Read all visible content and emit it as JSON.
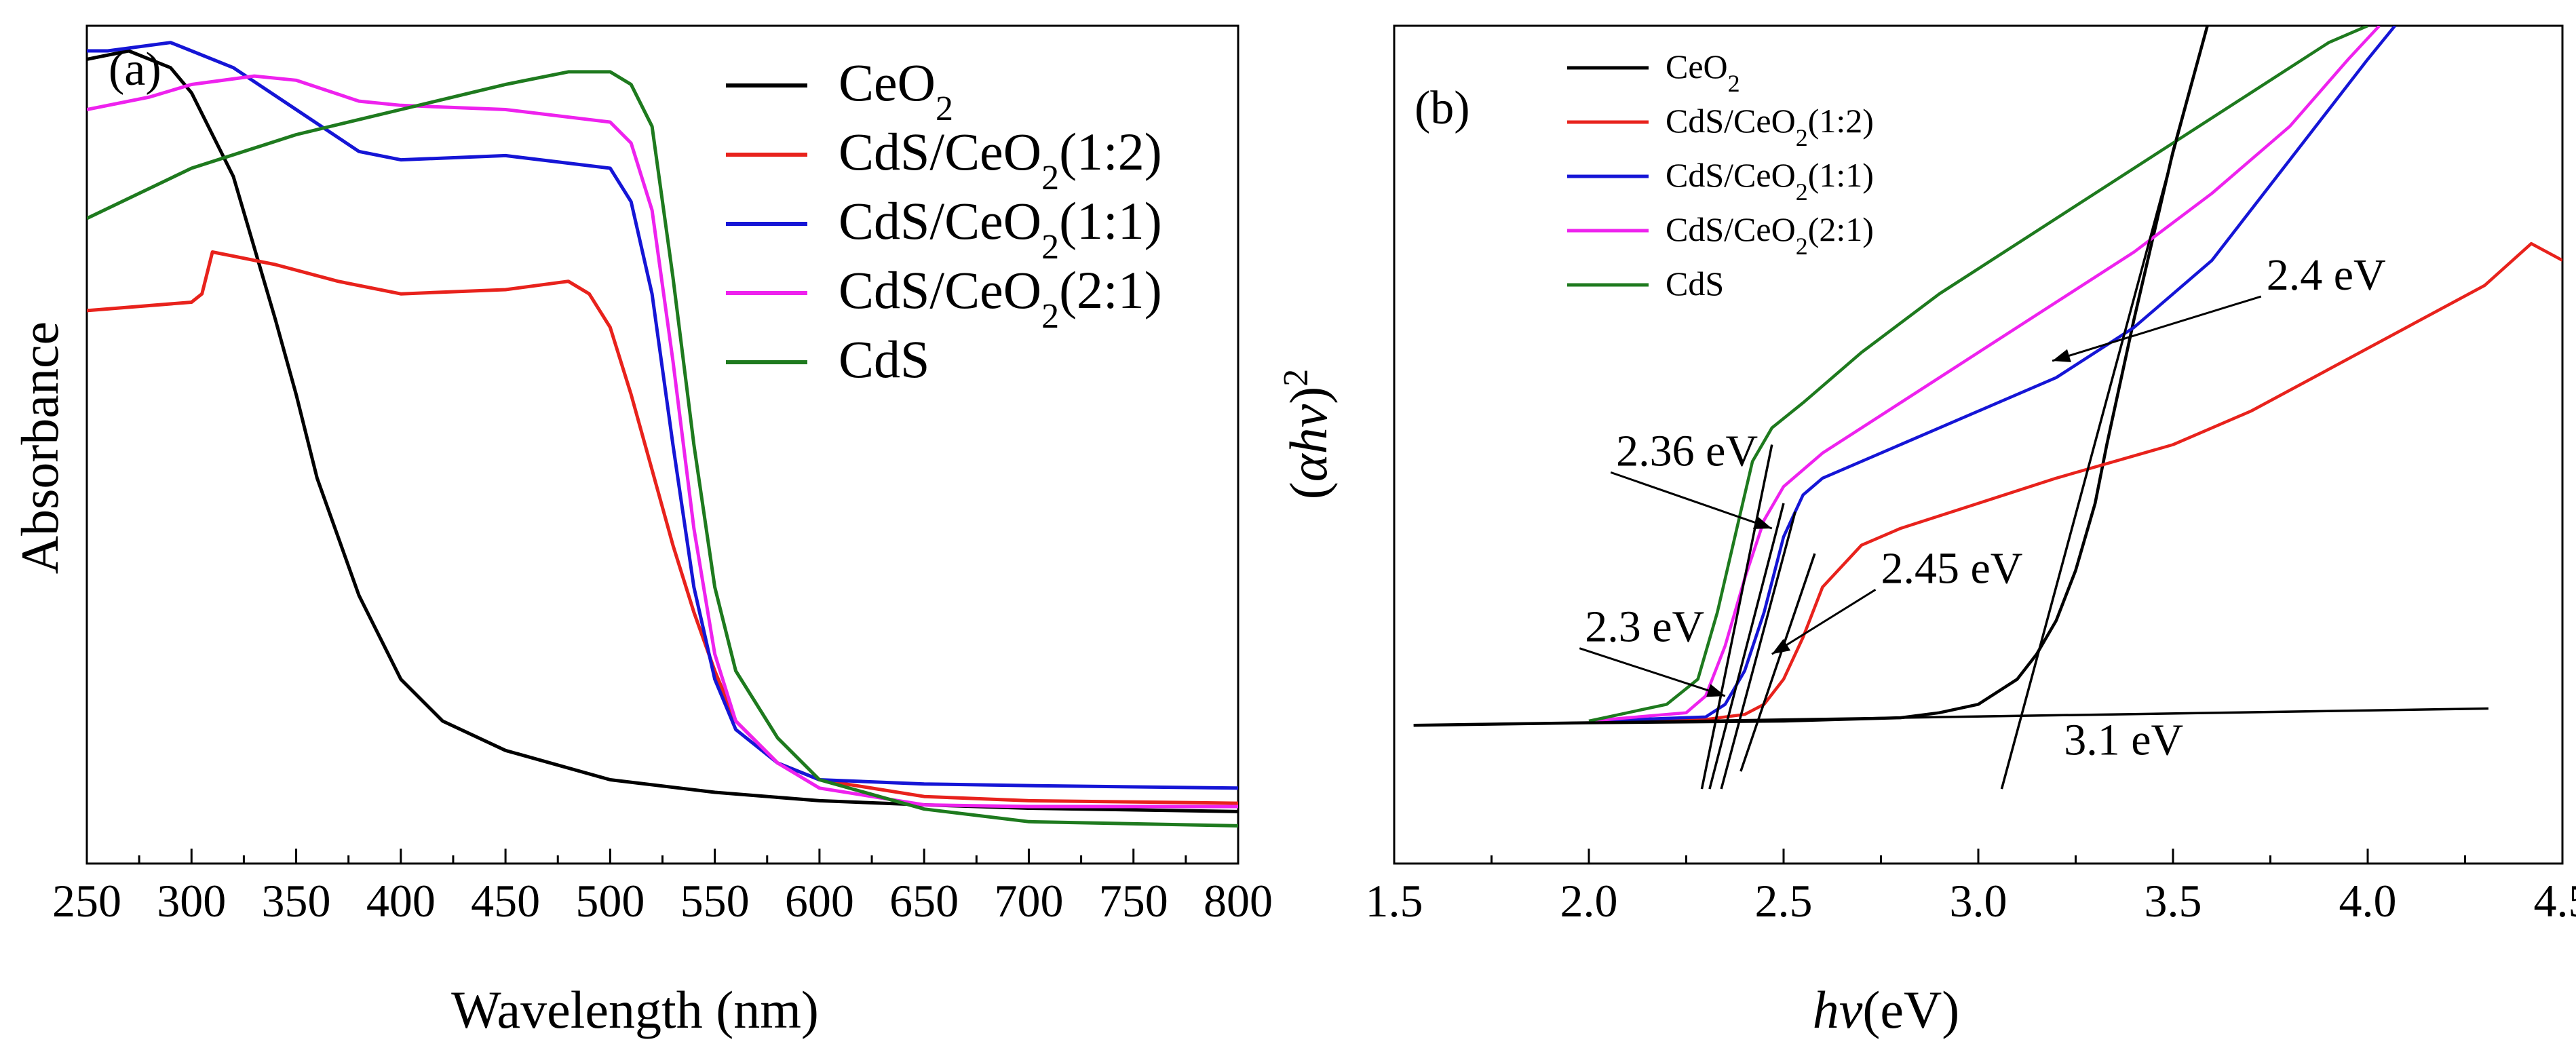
{
  "chart_data": [
    {
      "id": "a",
      "type": "line",
      "panel_label": "(a)",
      "xlabel": "Wavelength (nm)",
      "ylabel": "Absorbance",
      "xlim": [
        250,
        800
      ],
      "ylim": [
        0,
        1
      ],
      "x_ticks": [
        "250",
        "300",
        "350",
        "400",
        "450",
        "500",
        "550",
        "600",
        "650",
        "700",
        "750",
        "800"
      ],
      "y_ticks_shown": false,
      "legend": {
        "position": "top-right",
        "entries": [
          {
            "label": "CeO",
            "sub": "2",
            "tail": ""
          },
          {
            "label": "CdS/CeO",
            "sub": "2",
            "tail": "(1:2)"
          },
          {
            "label": "CdS/CeO",
            "sub": "2",
            "tail": "(1:1)"
          },
          {
            "label": "CdS/CeO",
            "sub": "2",
            "tail": "(2:1)"
          },
          {
            "label": "CdS",
            "sub": "",
            "tail": ""
          }
        ]
      },
      "series": [
        {
          "name": "CeO2",
          "color": "#000000",
          "x": [
            250,
            270,
            290,
            300,
            320,
            340,
            350,
            360,
            380,
            400,
            420,
            450,
            500,
            550,
            600,
            650,
            700,
            800
          ],
          "y": [
            0.96,
            0.97,
            0.95,
            0.92,
            0.82,
            0.65,
            0.56,
            0.46,
            0.32,
            0.22,
            0.17,
            0.135,
            0.1,
            0.085,
            0.075,
            0.07,
            0.066,
            0.062
          ]
        },
        {
          "name": "CdS/CeO2(1:2)",
          "color": "#e8221c",
          "x": [
            250,
            300,
            305,
            310,
            320,
            340,
            370,
            400,
            450,
            480,
            490,
            500,
            510,
            520,
            530,
            540,
            550,
            560,
            580,
            600,
            650,
            700,
            800
          ],
          "y": [
            0.66,
            0.67,
            0.68,
            0.73,
            0.725,
            0.715,
            0.695,
            0.68,
            0.685,
            0.695,
            0.68,
            0.64,
            0.56,
            0.47,
            0.38,
            0.3,
            0.23,
            0.17,
            0.12,
            0.1,
            0.08,
            0.075,
            0.072
          ]
        },
        {
          "name": "CdS/CeO2(1:1)",
          "color": "#1515d6",
          "x": [
            250,
            260,
            290,
            300,
            320,
            350,
            380,
            400,
            450,
            500,
            510,
            520,
            530,
            540,
            550,
            560,
            580,
            600,
            650,
            700,
            800
          ],
          "y": [
            0.97,
            0.97,
            0.98,
            0.97,
            0.95,
            0.9,
            0.85,
            0.84,
            0.845,
            0.83,
            0.79,
            0.68,
            0.5,
            0.33,
            0.22,
            0.16,
            0.12,
            0.1,
            0.095,
            0.093,
            0.09
          ]
        },
        {
          "name": "CdS/CeO2(2:1)",
          "color": "#ee22ee",
          "x": [
            250,
            280,
            300,
            330,
            350,
            380,
            400,
            450,
            500,
            510,
            520,
            530,
            540,
            550,
            560,
            580,
            600,
            650,
            700,
            800
          ],
          "y": [
            0.9,
            0.915,
            0.93,
            0.94,
            0.935,
            0.91,
            0.905,
            0.9,
            0.885,
            0.86,
            0.78,
            0.6,
            0.4,
            0.25,
            0.17,
            0.12,
            0.09,
            0.07,
            0.068,
            0.068
          ]
        },
        {
          "name": "CdS",
          "color": "#1e7a1e",
          "x": [
            250,
            300,
            350,
            400,
            450,
            480,
            500,
            510,
            520,
            530,
            540,
            550,
            560,
            580,
            600,
            650,
            700,
            800
          ],
          "y": [
            0.77,
            0.83,
            0.87,
            0.9,
            0.93,
            0.945,
            0.945,
            0.93,
            0.88,
            0.7,
            0.5,
            0.33,
            0.23,
            0.15,
            0.1,
            0.065,
            0.05,
            0.045
          ]
        }
      ]
    },
    {
      "id": "b",
      "type": "line",
      "panel_label": "(b)",
      "xlabel": "hν(eV)",
      "ylabel": "(αhν)²",
      "xlim": [
        1.5,
        4.5
      ],
      "ylim": [
        0,
        1
      ],
      "x_ticks": [
        "1.5",
        "2.0",
        "2.5",
        "3.0",
        "3.5",
        "4.0",
        "4.5"
      ],
      "y_ticks_shown": false,
      "legend": {
        "position": "top-left",
        "entries": [
          {
            "label": "CeO",
            "sub": "2",
            "tail": ""
          },
          {
            "label": "CdS/CeO",
            "sub": "2",
            "tail": "(1:2)"
          },
          {
            "label": "CdS/CeO",
            "sub": "2",
            "tail": "(1:1)"
          },
          {
            "label": "CdS/CeO",
            "sub": "2",
            "tail": "(2:1)"
          },
          {
            "label": "CdS",
            "sub": "",
            "tail": ""
          }
        ]
      },
      "series": [
        {
          "name": "CeO2",
          "color": "#000000",
          "x": [
            1.55,
            2.0,
            2.5,
            2.8,
            2.9,
            3.0,
            3.1,
            3.15,
            3.2,
            3.25,
            3.3,
            3.33,
            3.4,
            3.5,
            3.6
          ],
          "y": [
            0.165,
            0.168,
            0.17,
            0.174,
            0.18,
            0.19,
            0.22,
            0.25,
            0.29,
            0.35,
            0.43,
            0.5,
            0.65,
            0.85,
            1.02
          ]
        },
        {
          "name": "CdS/CeO2(1:2)",
          "color": "#e8221c",
          "x": [
            2.0,
            2.3,
            2.4,
            2.45,
            2.5,
            2.55,
            2.6,
            2.7,
            2.8,
            3.0,
            3.2,
            3.5,
            3.7,
            3.9,
            4.1,
            4.3,
            4.42,
            4.5
          ],
          "y": [
            0.17,
            0.172,
            0.178,
            0.19,
            0.22,
            0.27,
            0.33,
            0.38,
            0.4,
            0.43,
            0.46,
            0.5,
            0.54,
            0.59,
            0.64,
            0.69,
            0.74,
            0.72
          ]
        },
        {
          "name": "CdS/CeO2(1:1)",
          "color": "#1515d6",
          "x": [
            2.0,
            2.3,
            2.35,
            2.4,
            2.45,
            2.5,
            2.55,
            2.6,
            2.8,
            3.0,
            3.2,
            3.4,
            3.6,
            3.8,
            4.0,
            4.07
          ],
          "y": [
            0.17,
            0.175,
            0.19,
            0.23,
            0.3,
            0.39,
            0.44,
            0.46,
            0.5,
            0.54,
            0.58,
            0.64,
            0.72,
            0.84,
            0.96,
            1.0
          ]
        },
        {
          "name": "CdS/CeO2(2:1)",
          "color": "#ee22ee",
          "x": [
            2.0,
            2.25,
            2.3,
            2.35,
            2.4,
            2.45,
            2.5,
            2.6,
            2.8,
            3.0,
            3.2,
            3.4,
            3.6,
            3.8,
            3.95,
            4.03
          ],
          "y": [
            0.17,
            0.18,
            0.2,
            0.26,
            0.34,
            0.41,
            0.45,
            0.49,
            0.55,
            0.61,
            0.67,
            0.73,
            0.8,
            0.88,
            0.96,
            1.0
          ]
        },
        {
          "name": "CdS",
          "color": "#1e7a1e",
          "x": [
            2.0,
            2.2,
            2.28,
            2.33,
            2.38,
            2.42,
            2.47,
            2.55,
            2.7,
            2.9,
            3.1,
            3.3,
            3.5,
            3.7,
            3.9,
            4.0
          ],
          "y": [
            0.17,
            0.19,
            0.22,
            0.3,
            0.4,
            0.48,
            0.52,
            0.55,
            0.61,
            0.68,
            0.74,
            0.8,
            0.86,
            0.92,
            0.98,
            1.0
          ]
        }
      ],
      "fit_lines": [
        {
          "x1": 1.55,
          "y1": 0.165,
          "x2": 4.31,
          "y2": 0.185
        },
        {
          "x1": 3.06,
          "y1": 0.089,
          "x2": 3.6,
          "y2": 1.02
        },
        {
          "x1": 2.29,
          "y1": 0.089,
          "x2": 2.47,
          "y2": 0.5
        },
        {
          "x1": 2.31,
          "y1": 0.089,
          "x2": 2.5,
          "y2": 0.43
        },
        {
          "x1": 2.34,
          "y1": 0.089,
          "x2": 2.53,
          "y2": 0.42
        },
        {
          "x1": 2.39,
          "y1": 0.11,
          "x2": 2.58,
          "y2": 0.37
        }
      ],
      "annotations": [
        {
          "text": "2.4 eV",
          "x": 3.74,
          "y": 0.685,
          "arrow_to": [
            3.19,
            0.6
          ]
        },
        {
          "text": "2.36 eV",
          "x": 2.07,
          "y": 0.475,
          "arrow_to": [
            2.47,
            0.4
          ]
        },
        {
          "text": "2.45 eV",
          "x": 2.75,
          "y": 0.335,
          "arrow_to": [
            2.47,
            0.25
          ]
        },
        {
          "text": "2.3 eV",
          "x": 1.99,
          "y": 0.265,
          "arrow_to": [
            2.35,
            0.2
          ]
        },
        {
          "text": "3.1 eV",
          "x": 3.22,
          "y": 0.13,
          "arrow_to": null
        }
      ]
    }
  ]
}
